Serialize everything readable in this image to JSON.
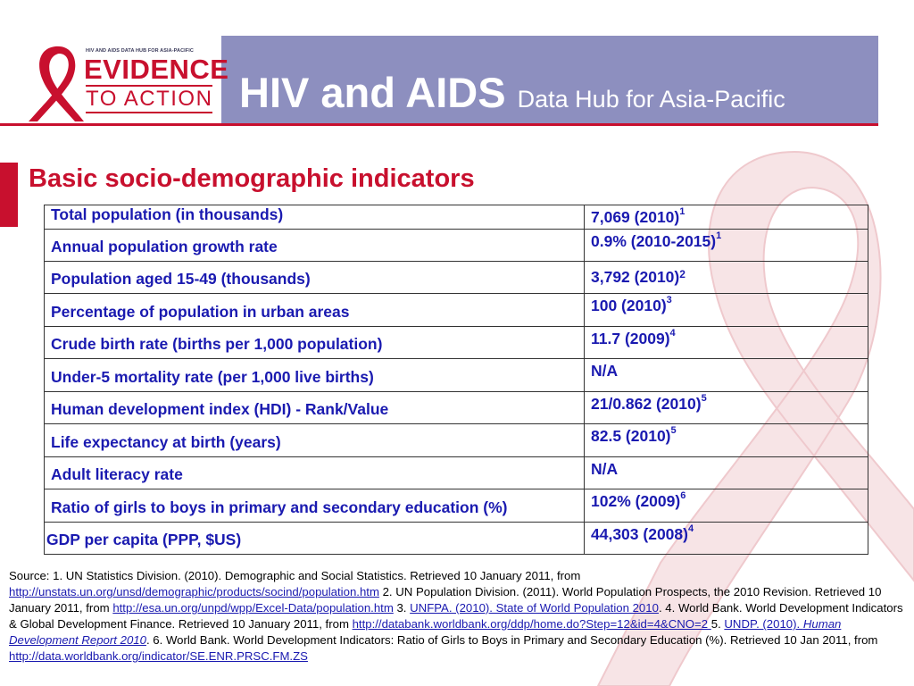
{
  "header": {
    "logo_hub_text": "HIV AND AIDS DATA HUB FOR ASIA-PACIFIC",
    "logo_evidence": "EVIDENCE",
    "logo_to_action": "TO ACTION",
    "title_main": "HIV and AIDS",
    "title_sub": "Data Hub for Asia-Pacific"
  },
  "section_title": "Basic socio-demographic indicators",
  "colors": {
    "header_bg": "#8d8fbf",
    "accent_red": "#c8102e",
    "table_text": "#1a1ab0"
  },
  "table": {
    "rows": [
      {
        "label": "Total population (in thousands)",
        "value": "7,069 (2010)",
        "ref": "1"
      },
      {
        "label": "Annual population growth rate",
        "value": "0.9%  (2010-2015)",
        "ref": "1"
      },
      {
        "label": "Population aged 15-49 (thousands)",
        "value": "3,792 (2010)",
        "ref": "2"
      },
      {
        "label": "Percentage of population in urban areas",
        "value": "100 (2010)",
        "ref": "3"
      },
      {
        "label": "Crude birth rate (births per 1,000 population)",
        "value": "11.7 (2009)",
        "ref": "4"
      },
      {
        "label": "Under-5 mortality rate (per 1,000 live births)",
        "value": "N/A",
        "ref": ""
      },
      {
        "label": "Human development index (HDI) - Rank/Value",
        "value": "21/0.862 (2010)",
        "ref": "5"
      },
      {
        "label": "Life expectancy at birth (years)",
        "value": "82.5  (2010)",
        "ref": "5"
      },
      {
        "label": "Adult literacy rate",
        "value": "N/A",
        "ref": ""
      },
      {
        "label": "Ratio of girls to boys in primary and secondary education (%)",
        "value": "102% (2009)",
        "ref": "6"
      },
      {
        "label": "GDP per capita (PPP, $US)",
        "value": "44,303 (2008)",
        "ref": "4"
      }
    ]
  },
  "source": {
    "s1": "Source: 1. UN Statistics Division. (2010). Demographic and Social Statistics.   Retrieved 10 January 2011, from ",
    "link1": "http://unstats.un.org/unsd/demographic/products/socind/population.htm",
    "s2": "  2. UN Population Division. (2011). World Population Prospects, the 2010 Revision. Retrieved 10 January 2011, from ",
    "link2": "http://esa.un.org/unpd/wpp/Excel-Data/population.htm",
    "s3": "  3. ",
    "link3": "UNFPA. (2010). State of World Population 2010",
    "s4": ". 4. World Bank. World Development Indicators & Global Development Finance.   Retrieved 10 January 2011, from ",
    "link4": "http://databank.worldbank.org/ddp/home.do?Step=12&id=4&CNO=2 ",
    "s5": " 5. ",
    "link5a": "UNDP. (2010). ",
    "link5b": "Human Development Report 2010",
    "s6": ". 6. World Bank. World Development Indicators: Ratio of Girls to Boys in Primary and Secondary Education (%).   Retrieved 10 Jan 2011, from ",
    "link6": "http://data.worldbank.org/indicator/SE.ENR.PRSC.FM.ZS"
  }
}
